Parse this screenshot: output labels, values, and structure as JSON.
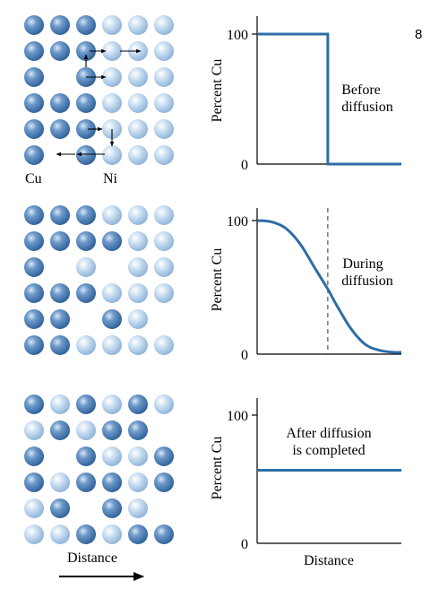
{
  "page_number": "8",
  "colors": {
    "cu_atom": "#3f73ad",
    "ni_atom": "#a9c8e6",
    "curve": "#2e6da6",
    "axis": "#000000"
  },
  "lattice_labels": {
    "cu": "Cu",
    "ni": "Ni"
  },
  "distance_label": "Distance",
  "panels": [
    {
      "id": "before",
      "annotation": [
        "Before",
        "diffusion"
      ],
      "ylabel": "Percent Cu",
      "xlabel": "",
      "grid": [
        [
          "cu",
          "cu",
          "cu",
          "ni",
          "ni",
          "ni"
        ],
        [
          "cu",
          "cu",
          "cu",
          "ni",
          "ni",
          "ni"
        ],
        [
          "cu",
          "",
          "cu",
          "ni",
          "ni",
          "ni"
        ],
        [
          "cu",
          "cu",
          "cu",
          "ni",
          "ni",
          "ni"
        ],
        [
          "cu",
          "cu",
          "cu",
          "ni",
          "ni",
          "ni"
        ],
        [
          "cu",
          "",
          "cu",
          "ni",
          "ni",
          "ni"
        ]
      ]
    },
    {
      "id": "during",
      "annotation": [
        "During",
        "diffusion"
      ],
      "ylabel": "Percent Cu",
      "xlabel": "",
      "grid": [
        [
          "cu",
          "cu",
          "cu",
          "ni",
          "ni",
          "ni"
        ],
        [
          "cu",
          "cu",
          "cu",
          "cu",
          "ni",
          "ni"
        ],
        [
          "cu",
          "",
          "ni",
          "",
          "ni",
          "ni"
        ],
        [
          "cu",
          "cu",
          "cu",
          "ni",
          "ni",
          "ni"
        ],
        [
          "cu",
          "cu",
          "",
          "cu",
          "ni",
          ""
        ],
        [
          "cu",
          "cu",
          "ni",
          "ni",
          "ni",
          "ni"
        ]
      ]
    },
    {
      "id": "after",
      "annotation": [
        "After diffusion",
        "is completed"
      ],
      "ylabel": "Percent Cu",
      "xlabel": "Distance",
      "grid": [
        [
          "cu",
          "ni",
          "cu",
          "ni",
          "cu",
          "ni"
        ],
        [
          "ni",
          "cu",
          "ni",
          "cu",
          "cu",
          ""
        ],
        [
          "cu",
          "",
          "cu",
          "ni",
          "ni",
          "cu"
        ],
        [
          "cu",
          "ni",
          "cu",
          "cu",
          "ni",
          "cu"
        ],
        [
          "ni",
          "cu",
          "",
          "cu",
          "ni",
          ""
        ],
        [
          "ni",
          "ni",
          "cu",
          "ni",
          "cu",
          "cu"
        ]
      ]
    }
  ],
  "chart_data": [
    {
      "type": "line",
      "ylabel": "Percent Cu",
      "xlabel": "",
      "yticks": [
        0,
        100
      ],
      "ylim": [
        0,
        100
      ],
      "xlim": [
        0,
        1
      ],
      "x": [
        0,
        0.49,
        0.49,
        1.0
      ],
      "y": [
        100,
        100,
        0,
        0
      ],
      "annotation": "Before diffusion"
    },
    {
      "type": "line",
      "ylabel": "Percent Cu",
      "xlabel": "",
      "yticks": [
        0,
        100
      ],
      "ylim": [
        0,
        100
      ],
      "xlim": [
        0,
        1
      ],
      "x": [
        0,
        0.1,
        0.2,
        0.3,
        0.4,
        0.49,
        0.55,
        0.65,
        0.75,
        0.85,
        0.95,
        1.0
      ],
      "y": [
        100,
        99,
        94,
        82,
        64,
        48,
        36,
        18,
        6,
        1.5,
        0,
        0
      ],
      "midline_x": 0.49,
      "annotation": "During diffusion"
    },
    {
      "type": "line",
      "ylabel": "Percent Cu",
      "xlabel": "Distance",
      "yticks": [
        0,
        100
      ],
      "ylim": [
        0,
        100
      ],
      "xlim": [
        0,
        1
      ],
      "x": [
        0,
        1
      ],
      "y": [
        57,
        57
      ],
      "annotation": "After diffusion is completed"
    }
  ]
}
